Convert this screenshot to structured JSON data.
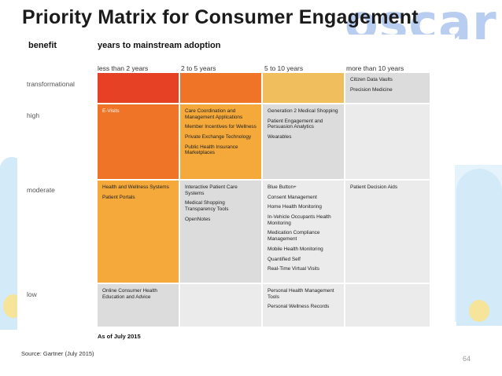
{
  "slide": {
    "title": "Priority Matrix for Consumer Engagement",
    "logo_text": "oscar",
    "page_number": "64"
  },
  "matrix": {
    "benefit_header": "benefit",
    "years_header": "years to mainstream adoption",
    "columns": [
      "less than 2 years",
      "2 to 5 years",
      "5 to 10 years",
      "more than 10 years"
    ],
    "rows": [
      "transformational",
      "high",
      "moderate",
      "low"
    ],
    "cells": {
      "transformational": [
        [],
        [],
        [],
        [
          "Citizen Data Vaults",
          "Precision Medicine"
        ]
      ],
      "high": [
        [
          "E-Visits"
        ],
        [
          "Care Coordination and Management Applications",
          "Member Incentives for Wellness",
          "Private Exchange Technology",
          "Public Health Insurance Marketplaces"
        ],
        [
          "Generation 2 Medical Shopping",
          "Patient Engagement and Persuasion Analytics",
          "Wearables"
        ],
        []
      ],
      "moderate": [
        [
          "Health and Wellness Systems",
          "Patient Portals"
        ],
        [
          "Interactive Patient Care Systems",
          "Medical Shopping Transparency Tools",
          "OpenNotes"
        ],
        [
          "Blue Button+",
          "Consent Management",
          "Home Health Monitoring",
          "In-Vehicle Occupants Health Monitoring",
          "Medication Compliance Management",
          "Mobile Health Monitoring",
          "Quantified Self",
          "Real-Time Virtual Visits"
        ],
        [
          "Patient Decision Aids"
        ]
      ],
      "low": [
        [
          "Online Consumer Health Education and Advice"
        ],
        [],
        [
          "Personal Health Management Tools",
          "Personal Wellness Records"
        ],
        []
      ]
    },
    "as_of": "As of July 2015",
    "source": "Source: Gartner (July 2015)"
  },
  "colors": {
    "red": "#e64125",
    "orange": "#f07427",
    "amber": "#f5a93b",
    "yellow": "#f0be5c",
    "gray": "#dcdcdc",
    "light_gray": "#ebebeb"
  }
}
